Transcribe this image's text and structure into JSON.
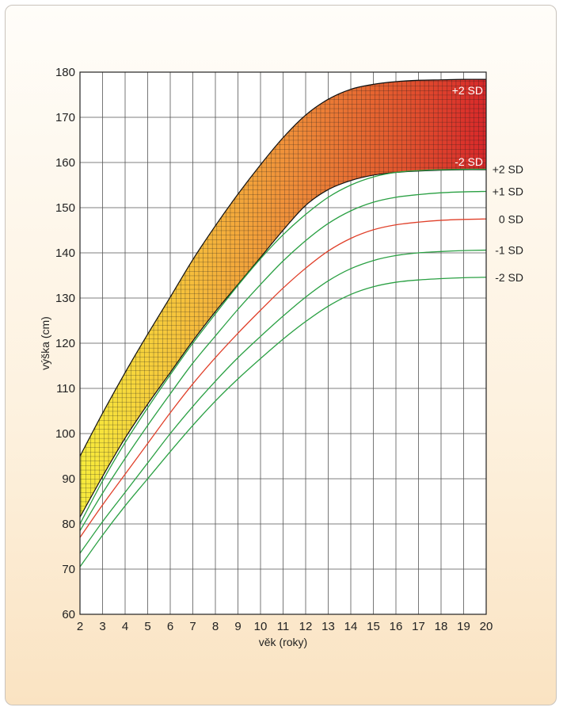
{
  "chart_data": {
    "type": "line",
    "xlabel": "věk (roky)",
    "ylabel": "výška (cm)",
    "xlim": [
      2,
      20
    ],
    "ylim": [
      60,
      180
    ],
    "x_ticks": [
      2,
      3,
      4,
      5,
      6,
      7,
      8,
      9,
      10,
      11,
      12,
      13,
      14,
      15,
      16,
      17,
      18,
      19,
      20
    ],
    "y_ticks": [
      60,
      70,
      80,
      90,
      100,
      110,
      120,
      130,
      140,
      150,
      160,
      170,
      180
    ],
    "grid": true,
    "x": [
      2,
      3,
      4,
      5,
      6,
      7,
      8,
      9,
      10,
      11,
      12,
      13,
      14,
      15,
      16,
      17,
      18,
      19,
      20
    ],
    "series": [
      {
        "name": "+2 SD",
        "color": "#2aa043",
        "values": [
          80.0,
          89.5,
          98.0,
          105.7,
          113.0,
          120.0,
          126.5,
          132.8,
          138.7,
          144.0,
          148.5,
          152.3,
          155.0,
          156.8,
          157.8,
          158.2,
          158.4,
          158.5,
          158.5
        ]
      },
      {
        "name": "+1 SD",
        "color": "#2aa043",
        "values": [
          78.5,
          86.8,
          94.5,
          101.8,
          108.8,
          115.6,
          121.6,
          127.5,
          133.0,
          138.2,
          142.7,
          146.5,
          149.3,
          151.2,
          152.3,
          152.9,
          153.3,
          153.5,
          153.6
        ]
      },
      {
        "name": "0 SD",
        "color": "#e0402a",
        "values": [
          77.0,
          84.2,
          91.0,
          97.8,
          104.6,
          111.0,
          116.8,
          122.2,
          127.3,
          132.2,
          136.6,
          140.4,
          143.2,
          145.1,
          146.2,
          146.8,
          147.2,
          147.4,
          147.5
        ]
      },
      {
        "name": "-1 SD",
        "color": "#2aa043",
        "values": [
          73.5,
          80.5,
          87.0,
          93.5,
          100.0,
          106.0,
          111.6,
          116.8,
          121.5,
          126.0,
          130.2,
          133.8,
          136.5,
          138.3,
          139.4,
          140.0,
          140.3,
          140.5,
          140.6
        ]
      },
      {
        "name": "-2 SD",
        "color": "#2aa043",
        "values": [
          70.5,
          77.5,
          84.0,
          90.0,
          96.0,
          101.8,
          107.2,
          112.1,
          116.6,
          120.9,
          124.8,
          128.2,
          130.8,
          132.5,
          133.5,
          134.0,
          134.3,
          134.5,
          134.6
        ]
      }
    ],
    "band": {
      "upper": {
        "label": "+2 SD",
        "values": [
          95.0,
          104.5,
          113.5,
          122.0,
          130.2,
          138.5,
          146.0,
          153.0,
          159.5,
          165.5,
          170.5,
          174.0,
          176.2,
          177.3,
          177.9,
          178.2,
          178.3,
          178.4,
          178.4
        ]
      },
      "lower": {
        "label": "-2 SD",
        "values": [
          81.5,
          90.5,
          99.0,
          106.5,
          113.5,
          120.5,
          127.0,
          133.0,
          139.0,
          145.0,
          150.5,
          154.0,
          156.0,
          157.2,
          157.8,
          158.1,
          158.3,
          158.4,
          158.4
        ]
      },
      "colors": [
        "#f5e83a",
        "#f3a43b",
        "#ea6d2e",
        "#d8322a"
      ]
    }
  }
}
